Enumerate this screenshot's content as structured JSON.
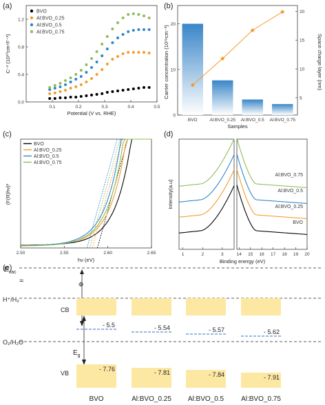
{
  "colors": {
    "bvo": "#000000",
    "al025": "#f39c2a",
    "al05": "#2e86c9",
    "al075": "#8fbc5a",
    "bar": "#4a90cc",
    "dash_blue": "#2e6fcc"
  },
  "chart_data": [
    {
      "id": "a",
      "panel_label": "(a)",
      "type": "scatter",
      "xlabel": "Potential (V vs. RHE)",
      "ylabel": "C⁻² (10¹⁰cm⁴F⁻²)",
      "xlim": [
        0.0,
        0.5
      ],
      "ylim": [
        0,
        1.4
      ],
      "xticks": [
        "0.1",
        "0.2",
        "0.3",
        "0.4",
        "0.5"
      ],
      "yticks": [
        "0.0",
        "0.4",
        "0.8",
        "1.2"
      ],
      "legend_position": "top-left",
      "x": [
        0.09,
        0.11,
        0.13,
        0.15,
        0.17,
        0.19,
        0.21,
        0.23,
        0.25,
        0.27,
        0.29,
        0.31,
        0.33,
        0.35,
        0.37,
        0.39,
        0.41,
        0.43,
        0.45,
        0.47
      ],
      "series": [
        {
          "name": "BVO",
          "color_key": "bvo",
          "values": [
            0.05,
            0.05,
            0.06,
            0.06,
            0.07,
            0.07,
            0.08,
            0.09,
            0.1,
            0.11,
            0.12,
            0.14,
            0.15,
            0.16,
            0.17,
            0.18,
            0.19,
            0.2,
            0.21,
            0.21
          ]
        },
        {
          "name": "Al:BVO_0.25",
          "color_key": "al025",
          "values": [
            0.12,
            0.13,
            0.15,
            0.17,
            0.2,
            0.22,
            0.25,
            0.29,
            0.34,
            0.4,
            0.47,
            0.55,
            0.62,
            0.66,
            0.7,
            0.72,
            0.72,
            0.72,
            0.72,
            0.71
          ]
        },
        {
          "name": "Al:BVO_0.5",
          "color_key": "al05",
          "values": [
            0.18,
            0.2,
            0.22,
            0.25,
            0.29,
            0.33,
            0.37,
            0.43,
            0.5,
            0.58,
            0.67,
            0.77,
            0.86,
            0.93,
            0.98,
            1.02,
            1.04,
            1.05,
            1.05,
            1.05
          ]
        },
        {
          "name": "Al:BVO_0.75",
          "color_key": "al075",
          "values": [
            0.21,
            0.24,
            0.27,
            0.31,
            0.35,
            0.4,
            0.46,
            0.54,
            0.63,
            0.73,
            0.84,
            0.95,
            1.06,
            1.15,
            1.22,
            1.27,
            1.28,
            1.27,
            1.25,
            1.22
          ]
        }
      ]
    },
    {
      "id": "b",
      "panel_label": "(b)",
      "type": "bar",
      "categories": [
        "BVO",
        "Al:BVO_0.25",
        "Al:BVO_0.5",
        "Al:BVO_0.75"
      ],
      "xlabel": "Samples",
      "ylabel": "Carrier concentration (10¹⁹cm⁻³)",
      "y2label": "Space charge layer (nm)",
      "ylim": [
        0,
        24
      ],
      "y2lim": [
        2,
        21
      ],
      "yticks": [
        "0",
        "10",
        "20"
      ],
      "y2ticks": [
        "5",
        "10",
        "15",
        "20"
      ],
      "bar_values": [
        20.0,
        7.6,
        3.4,
        2.4
      ],
      "line_values": [
        7.2,
        11.8,
        16.7,
        19.9
      ]
    },
    {
      "id": "c",
      "panel_label": "(c)",
      "type": "line",
      "xlabel": "hν (eV)",
      "ylabel": "(F(R)hν)²",
      "xlim": [
        2.5,
        2.65
      ],
      "xticks": [
        "2.50",
        "2.55",
        "2.60",
        "2.65"
      ],
      "legend_position": "top-left",
      "series": [
        {
          "name": "BVO",
          "color_key": "bvo",
          "onset": 2.588
        },
        {
          "name": "Al:BVO_0.25",
          "color_key": "al025",
          "onset": 2.582
        },
        {
          "name": "Al:BVO_0.5",
          "color_key": "al05",
          "onset": 2.576
        },
        {
          "name": "Al:BVO_0.75",
          "color_key": "al075",
          "onset": 2.579
        }
      ]
    },
    {
      "id": "d",
      "panel_label": "(d)",
      "type": "line",
      "xlabel": "Binding energy (eV)",
      "ylabel": "Intensity(a.u)",
      "xticks_left": [
        "1",
        "2",
        "3"
      ],
      "xticks_right": [
        "14",
        "15",
        "16",
        "17",
        "18",
        "19",
        "20"
      ],
      "series": [
        {
          "name": "BVO",
          "color_key": "bvo"
        },
        {
          "name": "Al:BVO_0.25",
          "color_key": "al025"
        },
        {
          "name": "Al:BVO_0.5",
          "color_key": "al05"
        },
        {
          "name": "Al:BVO_0.75",
          "color_key": "al075"
        }
      ]
    }
  ],
  "band_diagram": {
    "panel_label": "(e)",
    "levels": {
      "vac": "E",
      "vac_sub": "vac",
      "h": "H⁺/H₂",
      "o": "O₂/H₂O",
      "eg": "E",
      "eg_sub": "g"
    },
    "band_labels": {
      "cb": "CB",
      "vb": "VB",
      "phi": "Φ"
    },
    "samples": [
      {
        "name": "BVO",
        "fermi": "- 5.5",
        "vb": "- 7.76"
      },
      {
        "name": "Al:BVO_0.25",
        "fermi": "- 5.54",
        "vb": "- 7.81"
      },
      {
        "name": "Al:BVO_0.5",
        "fermi": "- 5.57",
        "vb": "- 7.84"
      },
      {
        "name": "Al:BVO_0.75",
        "fermi": "- 5.62",
        "vb": "- 7.91"
      }
    ]
  }
}
